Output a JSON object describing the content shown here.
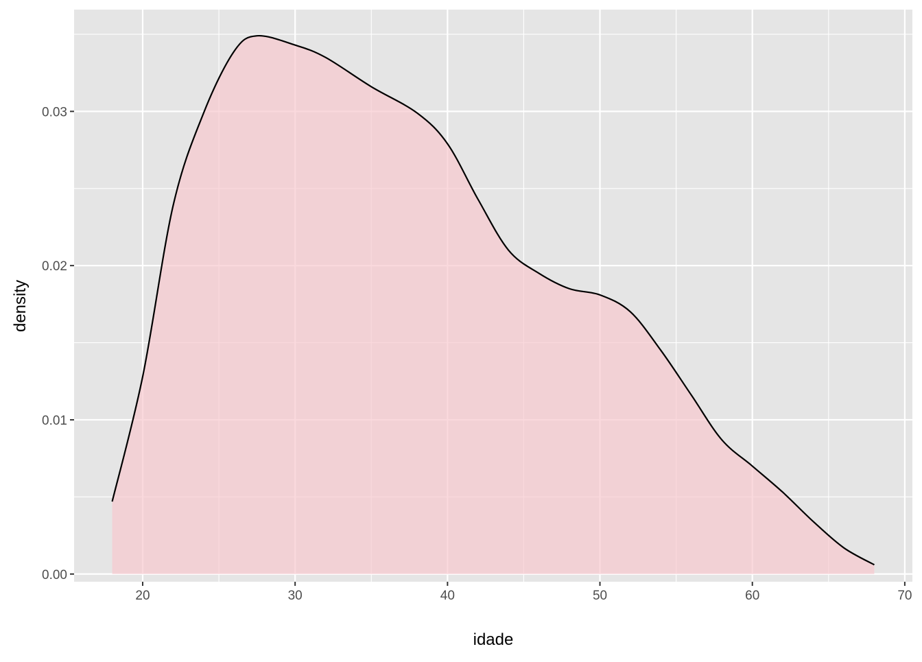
{
  "chart_data": {
    "type": "area",
    "title": "",
    "xlabel": "idade",
    "ylabel": "density",
    "xlim": [
      15.5,
      70.5
    ],
    "ylim": [
      -0.0005,
      0.0366
    ],
    "x_ticks": [
      20,
      30,
      40,
      50,
      60,
      70
    ],
    "x_tick_labels": [
      "20",
      "30",
      "40",
      "50",
      "60",
      "70"
    ],
    "y_ticks": [
      0,
      0.01,
      0.02,
      0.03
    ],
    "y_tick_labels": [
      "0.00",
      "0.01",
      "0.02",
      "0.03"
    ],
    "grid": true,
    "panel_background": "#E5E5E5",
    "fill_color": "#F8C9CF",
    "fill_alpha": 0.7,
    "line_color": "#000000",
    "x": [
      18,
      20,
      22,
      24,
      26,
      27.5,
      30,
      32,
      35,
      38,
      40,
      42,
      44,
      46,
      48,
      50,
      52,
      54,
      56,
      58,
      60,
      62,
      64,
      66,
      68
    ],
    "y": [
      0.0047,
      0.0128,
      0.0239,
      0.0299,
      0.0339,
      0.0349,
      0.0343,
      0.0335,
      0.0316,
      0.0299,
      0.0279,
      0.0243,
      0.021,
      0.0195,
      0.0185,
      0.0181,
      0.017,
      0.0145,
      0.0116,
      0.0087,
      0.007,
      0.0053,
      0.0034,
      0.0017,
      0.0006
    ]
  }
}
